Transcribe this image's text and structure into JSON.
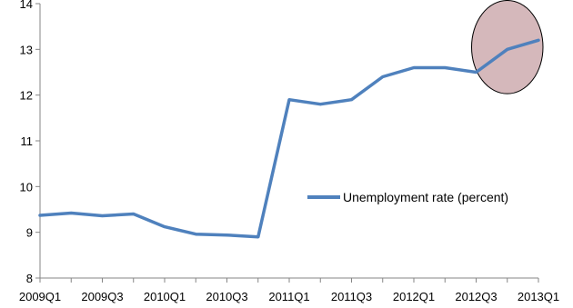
{
  "chart_data": {
    "type": "line",
    "categories": [
      "2009Q1",
      "2009Q2",
      "2009Q3",
      "2009Q4",
      "2010Q1",
      "2010Q2",
      "2010Q3",
      "2010Q4",
      "2011Q1",
      "2011Q2",
      "2011Q3",
      "2011Q4",
      "2012Q1",
      "2012Q2",
      "2012Q3",
      "2012Q4",
      "2013Q1"
    ],
    "x_tick_labels": [
      "2009Q1",
      "2009Q3",
      "2010Q1",
      "2010Q3",
      "2011Q1",
      "2011Q3",
      "2012Q1",
      "2012Q3",
      "2013Q1"
    ],
    "series": [
      {
        "name": "Unemployment rate (percent)",
        "values": [
          9.37,
          9.42,
          9.36,
          9.4,
          9.12,
          8.96,
          8.94,
          8.9,
          11.9,
          11.8,
          11.9,
          12.4,
          12.6,
          12.6,
          12.5,
          13.0,
          13.2
        ],
        "color": "#4f81bd"
      }
    ],
    "ylim": [
      8,
      14
    ],
    "y_ticks": [
      8,
      9,
      10,
      11,
      12,
      13,
      14
    ],
    "grid": false,
    "legend_position": "right",
    "annotation": {
      "shape": "ellipse",
      "highlights": [
        "2012Q3",
        "2013Q1"
      ],
      "fill": "#d5b8bb",
      "stroke": "#000000"
    },
    "title": "",
    "xlabel": "",
    "ylabel": ""
  }
}
